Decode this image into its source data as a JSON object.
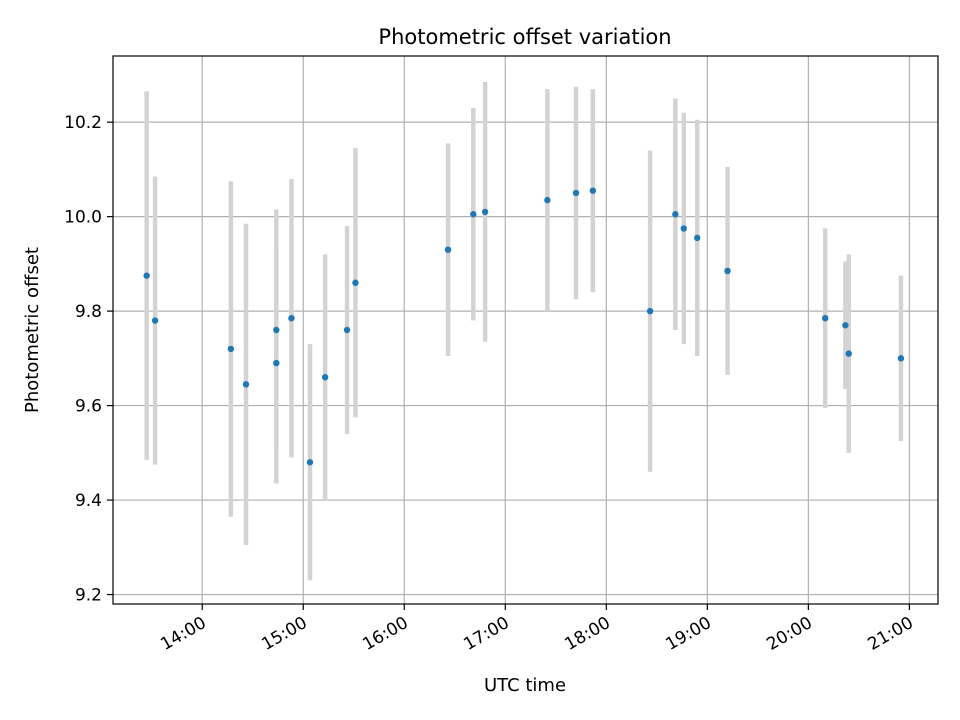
{
  "chart_data": {
    "type": "scatter",
    "title": "Photometric offset variation",
    "xlabel": "UTC time",
    "ylabel": "Photometric offset",
    "xlim": [
      "13:07",
      "21:17"
    ],
    "ylim": [
      9.18,
      10.34
    ],
    "x_ticks": [
      "14:00",
      "15:00",
      "16:00",
      "17:00",
      "18:00",
      "19:00",
      "20:00",
      "21:00"
    ],
    "y_ticks": [
      "9.2",
      "9.4",
      "9.6",
      "9.8",
      "10.0",
      "10.2"
    ],
    "grid": true,
    "colors": {
      "points": "#1f77b4",
      "errorbars": "#d3d3d3",
      "grid": "#b0b0b0"
    },
    "series": [
      {
        "points": [
          {
            "x": "13:27",
            "y": 9.875,
            "err": 0.39
          },
          {
            "x": "13:32",
            "y": 9.78,
            "err": 0.305
          },
          {
            "x": "14:17",
            "y": 9.72,
            "err": 0.355
          },
          {
            "x": "14:26",
            "y": 9.645,
            "err": 0.34
          },
          {
            "x": "14:44",
            "y": 9.69,
            "err": 0.255
          },
          {
            "x": "14:44",
            "y": 9.76,
            "err": 0.255
          },
          {
            "x": "14:53",
            "y": 9.785,
            "err": 0.295
          },
          {
            "x": "15:04",
            "y": 9.48,
            "err": 0.25
          },
          {
            "x": "15:13",
            "y": 9.66,
            "err": 0.26
          },
          {
            "x": "15:26",
            "y": 9.76,
            "err": 0.22
          },
          {
            "x": "15:31",
            "y": 9.86,
            "err": 0.285
          },
          {
            "x": "16:26",
            "y": 9.93,
            "err": 0.225
          },
          {
            "x": "16:41",
            "y": 10.005,
            "err": 0.225
          },
          {
            "x": "16:48",
            "y": 10.01,
            "err": 0.275
          },
          {
            "x": "17:25",
            "y": 10.035,
            "err": 0.235
          },
          {
            "x": "17:42",
            "y": 10.05,
            "err": 0.225
          },
          {
            "x": "17:52",
            "y": 10.055,
            "err": 0.215
          },
          {
            "x": "18:26",
            "y": 9.8,
            "err": 0.34
          },
          {
            "x": "18:41",
            "y": 10.005,
            "err": 0.245
          },
          {
            "x": "18:46",
            "y": 9.975,
            "err": 0.245
          },
          {
            "x": "18:54",
            "y": 9.955,
            "err": 0.25
          },
          {
            "x": "19:12",
            "y": 9.885,
            "err": 0.22
          },
          {
            "x": "20:10",
            "y": 9.785,
            "err": 0.19
          },
          {
            "x": "20:22",
            "y": 9.77,
            "err": 0.135
          },
          {
            "x": "20:24",
            "y": 9.71,
            "err": 0.21
          },
          {
            "x": "20:55",
            "y": 9.7,
            "err": 0.175
          }
        ]
      }
    ]
  }
}
